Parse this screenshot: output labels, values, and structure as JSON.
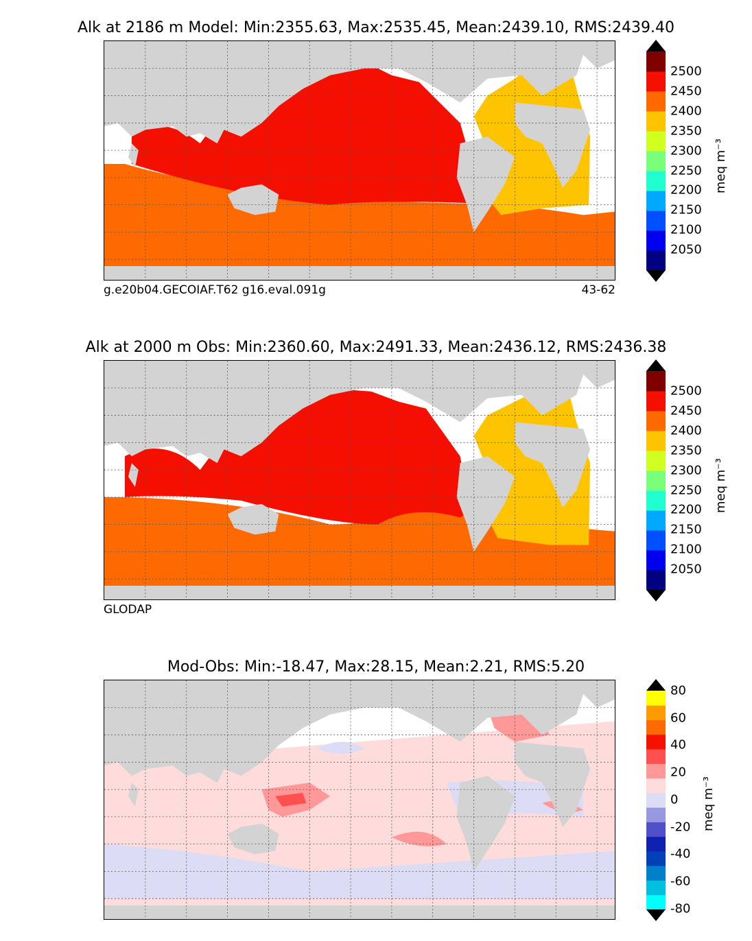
{
  "panels": [
    {
      "title": "Alk at 2186 m Model: Min:2355.63, Max:2535.45, Mean:2439.10, RMS:2439.40",
      "footer_left": "g.e20b04.GECOIAF.T62 g16.eval.091g",
      "footer_right": "43-62",
      "colorbar_label": "meq m⁻³",
      "ticks": [
        "2500",
        "2450",
        "2400",
        "2350",
        "2300",
        "2250",
        "2200",
        "2150",
        "2100",
        "2050"
      ]
    },
    {
      "title": "Alk at 2000 m Obs: Min:2360.60, Max:2491.33, Mean:2436.12, RMS:2436.38",
      "footer_left": "GLODAP",
      "footer_right": "",
      "colorbar_label": "meq m⁻³",
      "ticks": [
        "2500",
        "2450",
        "2400",
        "2350",
        "2300",
        "2250",
        "2200",
        "2150",
        "2100",
        "2050"
      ]
    },
    {
      "title": "Mod-Obs: Min:-18.47, Max:28.15, Mean:2.21, RMS:5.20",
      "footer_left": "",
      "footer_right": "",
      "colorbar_label": "meq m⁻³",
      "ticks": [
        "80",
        "60",
        "40",
        "20",
        "0",
        "-20",
        "-40",
        "-60",
        "-80"
      ]
    }
  ],
  "colors": {
    "land": "#d3d3d3",
    "alk_scale": [
      "#000080",
      "#0000ee",
      "#0050ff",
      "#00a8ff",
      "#20ffd0",
      "#7aff7a",
      "#d0ff20",
      "#ffc400",
      "#ff6a00",
      "#f50f00",
      "#800000"
    ],
    "diff_scale": [
      "#00ffff",
      "#00c0e0",
      "#0080c8",
      "#0040b8",
      "#1020b0",
      "#5050c8",
      "#9898e0",
      "#dcdcf4",
      "#ffdcdc",
      "#ff9898",
      "#ff5050",
      "#f51000",
      "#ff6a00",
      "#ff9a00",
      "#ffff00"
    ]
  }
}
